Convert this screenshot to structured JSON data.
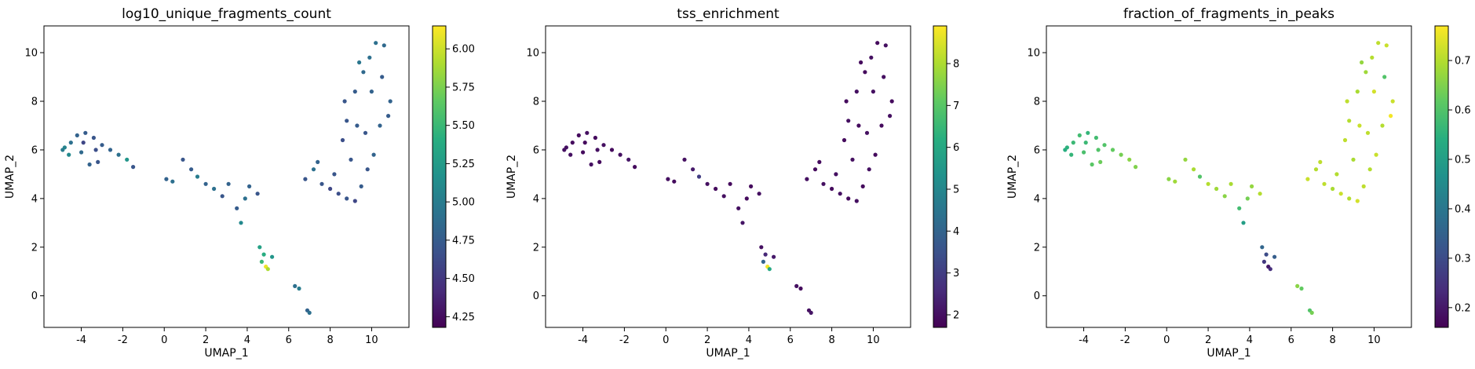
{
  "chart_data": [
    {
      "type": "scatter",
      "title": "log10_unique_fragments_count",
      "xlabel": "UMAP_1",
      "ylabel": "UMAP_2",
      "xlim": [
        -5.8,
        11.8
      ],
      "ylim": [
        -1.3,
        11.1
      ],
      "xticks": [
        -4,
        -2,
        0,
        2,
        4,
        6,
        8,
        10
      ],
      "yticks": [
        0,
        2,
        4,
        6,
        8,
        10
      ],
      "colorbar": {
        "cmap": "viridis",
        "vmin": 4.18,
        "vmax": 6.15,
        "ticks": [
          4.25,
          4.5,
          4.75,
          5.0,
          5.25,
          5.5,
          5.75,
          6.0
        ],
        "tick_labels": [
          "4.25",
          "4.50",
          "4.75",
          "5.00",
          "5.25",
          "5.50",
          "5.75",
          "6.00"
        ]
      },
      "points": [
        {
          "x": -4.8,
          "y": 6.1,
          "c": 5.05
        },
        {
          "x": -4.5,
          "y": 6.3,
          "c": 4.9
        },
        {
          "x": -4.2,
          "y": 6.6,
          "c": 4.8
        },
        {
          "x": -3.8,
          "y": 6.7,
          "c": 4.75
        },
        {
          "x": -3.4,
          "y": 6.5,
          "c": 4.7
        },
        {
          "x": -3.0,
          "y": 6.2,
          "c": 4.75
        },
        {
          "x": -2.6,
          "y": 6.0,
          "c": 4.8
        },
        {
          "x": -2.2,
          "y": 5.8,
          "c": 4.9
        },
        {
          "x": -1.8,
          "y": 5.6,
          "c": 5.2
        },
        {
          "x": -1.5,
          "y": 5.3,
          "c": 4.7
        },
        {
          "x": -4.6,
          "y": 5.8,
          "c": 5.1
        },
        {
          "x": -4.0,
          "y": 5.9,
          "c": 4.85
        },
        {
          "x": -3.6,
          "y": 5.4,
          "c": 4.8
        },
        {
          "x": -3.2,
          "y": 5.5,
          "c": 4.7
        },
        {
          "x": -4.9,
          "y": 6.0,
          "c": 5.0
        },
        {
          "x": -3.9,
          "y": 6.3,
          "c": 4.6
        },
        {
          "x": -3.3,
          "y": 6.0,
          "c": 4.65
        },
        {
          "x": 0.1,
          "y": 4.8,
          "c": 4.8
        },
        {
          "x": 0.4,
          "y": 4.7,
          "c": 4.9
        },
        {
          "x": 0.9,
          "y": 5.6,
          "c": 4.7
        },
        {
          "x": 1.3,
          "y": 5.2,
          "c": 4.75
        },
        {
          "x": 1.6,
          "y": 4.9,
          "c": 5.0
        },
        {
          "x": 2.0,
          "y": 4.6,
          "c": 4.8
        },
        {
          "x": 2.4,
          "y": 4.4,
          "c": 4.9
        },
        {
          "x": 2.8,
          "y": 4.1,
          "c": 4.7
        },
        {
          "x": 3.1,
          "y": 4.6,
          "c": 4.8
        },
        {
          "x": 3.5,
          "y": 3.6,
          "c": 4.75
        },
        {
          "x": 3.7,
          "y": 3.0,
          "c": 5.1
        },
        {
          "x": 4.1,
          "y": 4.5,
          "c": 4.8
        },
        {
          "x": 4.5,
          "y": 4.2,
          "c": 4.7
        },
        {
          "x": 3.9,
          "y": 4.0,
          "c": 4.9
        },
        {
          "x": 4.6,
          "y": 2.0,
          "c": 5.3
        },
        {
          "x": 4.8,
          "y": 1.7,
          "c": 5.4
        },
        {
          "x": 4.7,
          "y": 1.4,
          "c": 5.5
        },
        {
          "x": 4.9,
          "y": 1.2,
          "c": 6.1
        },
        {
          "x": 5.0,
          "y": 1.1,
          "c": 5.9
        },
        {
          "x": 5.2,
          "y": 1.6,
          "c": 5.2
        },
        {
          "x": 6.3,
          "y": 0.4,
          "c": 4.9
        },
        {
          "x": 6.5,
          "y": 0.3,
          "c": 5.0
        },
        {
          "x": 6.9,
          "y": -0.6,
          "c": 4.8
        },
        {
          "x": 7.0,
          "y": -0.7,
          "c": 4.9
        },
        {
          "x": 6.8,
          "y": 4.8,
          "c": 4.7
        },
        {
          "x": 7.2,
          "y": 5.2,
          "c": 4.9
        },
        {
          "x": 7.6,
          "y": 4.6,
          "c": 4.7
        },
        {
          "x": 8.0,
          "y": 4.4,
          "c": 4.6
        },
        {
          "x": 8.4,
          "y": 4.2,
          "c": 4.65
        },
        {
          "x": 8.8,
          "y": 4.0,
          "c": 4.7
        },
        {
          "x": 9.2,
          "y": 3.9,
          "c": 4.6
        },
        {
          "x": 9.5,
          "y": 4.5,
          "c": 4.75
        },
        {
          "x": 9.8,
          "y": 5.2,
          "c": 4.7
        },
        {
          "x": 10.1,
          "y": 5.8,
          "c": 4.8
        },
        {
          "x": 9.0,
          "y": 5.6,
          "c": 4.7
        },
        {
          "x": 8.6,
          "y": 6.4,
          "c": 4.65
        },
        {
          "x": 8.8,
          "y": 7.2,
          "c": 4.7
        },
        {
          "x": 9.3,
          "y": 7.0,
          "c": 4.75
        },
        {
          "x": 9.7,
          "y": 6.7,
          "c": 4.7
        },
        {
          "x": 10.4,
          "y": 7.0,
          "c": 4.8
        },
        {
          "x": 10.8,
          "y": 7.4,
          "c": 4.75
        },
        {
          "x": 10.9,
          "y": 8.0,
          "c": 4.8
        },
        {
          "x": 9.2,
          "y": 8.4,
          "c": 4.75
        },
        {
          "x": 9.6,
          "y": 9.2,
          "c": 4.85
        },
        {
          "x": 9.9,
          "y": 9.8,
          "c": 4.9
        },
        {
          "x": 10.2,
          "y": 10.4,
          "c": 4.9
        },
        {
          "x": 10.6,
          "y": 10.3,
          "c": 4.85
        },
        {
          "x": 9.4,
          "y": 9.6,
          "c": 4.95
        },
        {
          "x": 10.5,
          "y": 9.0,
          "c": 4.75
        },
        {
          "x": 8.7,
          "y": 8.0,
          "c": 4.7
        },
        {
          "x": 10.0,
          "y": 8.4,
          "c": 4.8
        },
        {
          "x": 7.4,
          "y": 5.5,
          "c": 4.8
        },
        {
          "x": 8.2,
          "y": 5.0,
          "c": 4.7
        }
      ]
    },
    {
      "type": "scatter",
      "title": "tss_enrichment",
      "xlabel": "UMAP_1",
      "ylabel": "UMAP_2",
      "xlim": [
        -5.8,
        11.8
      ],
      "ylim": [
        -1.3,
        11.1
      ],
      "xticks": [
        -4,
        -2,
        0,
        2,
        4,
        6,
        8,
        10
      ],
      "yticks": [
        0,
        2,
        4,
        6,
        8,
        10
      ],
      "colorbar": {
        "cmap": "viridis",
        "vmin": 1.7,
        "vmax": 8.9,
        "ticks": [
          2,
          3,
          4,
          5,
          6,
          7,
          8
        ],
        "tick_labels": [
          "2",
          "3",
          "4",
          "5",
          "6",
          "7",
          "8"
        ]
      },
      "points": [
        {
          "x": -4.8,
          "y": 6.1,
          "c": 2.0
        },
        {
          "x": -4.5,
          "y": 6.3,
          "c": 1.9
        },
        {
          "x": -4.2,
          "y": 6.6,
          "c": 1.9
        },
        {
          "x": -3.8,
          "y": 6.7,
          "c": 2.0
        },
        {
          "x": -3.4,
          "y": 6.5,
          "c": 1.9
        },
        {
          "x": -3.0,
          "y": 6.2,
          "c": 2.0
        },
        {
          "x": -2.6,
          "y": 6.0,
          "c": 1.9
        },
        {
          "x": -2.2,
          "y": 5.8,
          "c": 2.0
        },
        {
          "x": -1.8,
          "y": 5.6,
          "c": 2.1
        },
        {
          "x": -1.5,
          "y": 5.3,
          "c": 1.9
        },
        {
          "x": -4.6,
          "y": 5.8,
          "c": 2.0
        },
        {
          "x": -4.0,
          "y": 5.9,
          "c": 1.9
        },
        {
          "x": -3.6,
          "y": 5.4,
          "c": 2.0
        },
        {
          "x": -3.2,
          "y": 5.5,
          "c": 1.9
        },
        {
          "x": -4.9,
          "y": 6.0,
          "c": 2.0
        },
        {
          "x": -3.9,
          "y": 6.3,
          "c": 1.9
        },
        {
          "x": -3.3,
          "y": 6.0,
          "c": 2.0
        },
        {
          "x": 0.1,
          "y": 4.8,
          "c": 2.0
        },
        {
          "x": 0.4,
          "y": 4.7,
          "c": 1.9
        },
        {
          "x": 0.9,
          "y": 5.6,
          "c": 2.0
        },
        {
          "x": 1.3,
          "y": 5.2,
          "c": 2.2
        },
        {
          "x": 1.6,
          "y": 4.9,
          "c": 3.0
        },
        {
          "x": 2.0,
          "y": 4.6,
          "c": 2.0
        },
        {
          "x": 2.4,
          "y": 4.4,
          "c": 1.9
        },
        {
          "x": 2.8,
          "y": 4.1,
          "c": 2.0
        },
        {
          "x": 3.1,
          "y": 4.6,
          "c": 1.9
        },
        {
          "x": 3.5,
          "y": 3.6,
          "c": 2.0
        },
        {
          "x": 3.7,
          "y": 3.0,
          "c": 2.1
        },
        {
          "x": 4.1,
          "y": 4.5,
          "c": 1.9
        },
        {
          "x": 4.5,
          "y": 4.2,
          "c": 2.0
        },
        {
          "x": 3.9,
          "y": 4.0,
          "c": 1.9
        },
        {
          "x": 4.6,
          "y": 2.0,
          "c": 2.0
        },
        {
          "x": 4.8,
          "y": 1.7,
          "c": 2.5
        },
        {
          "x": 4.7,
          "y": 1.4,
          "c": 4.0
        },
        {
          "x": 4.9,
          "y": 1.2,
          "c": 8.8
        },
        {
          "x": 5.0,
          "y": 1.1,
          "c": 6.0
        },
        {
          "x": 5.2,
          "y": 1.6,
          "c": 2.2
        },
        {
          "x": 6.3,
          "y": 0.4,
          "c": 2.0
        },
        {
          "x": 6.5,
          "y": 0.3,
          "c": 1.9
        },
        {
          "x": 6.9,
          "y": -0.6,
          "c": 2.0
        },
        {
          "x": 7.0,
          "y": -0.7,
          "c": 2.1
        },
        {
          "x": 6.8,
          "y": 4.8,
          "c": 2.0
        },
        {
          "x": 7.2,
          "y": 5.2,
          "c": 1.9
        },
        {
          "x": 7.6,
          "y": 4.6,
          "c": 2.0
        },
        {
          "x": 8.0,
          "y": 4.4,
          "c": 1.9
        },
        {
          "x": 8.4,
          "y": 4.2,
          "c": 2.0
        },
        {
          "x": 8.8,
          "y": 4.0,
          "c": 1.9
        },
        {
          "x": 9.2,
          "y": 3.9,
          "c": 2.0
        },
        {
          "x": 9.5,
          "y": 4.5,
          "c": 1.9
        },
        {
          "x": 9.8,
          "y": 5.2,
          "c": 2.0
        },
        {
          "x": 10.1,
          "y": 5.8,
          "c": 1.9
        },
        {
          "x": 9.0,
          "y": 5.6,
          "c": 2.0
        },
        {
          "x": 8.6,
          "y": 6.4,
          "c": 1.9
        },
        {
          "x": 8.8,
          "y": 7.2,
          "c": 2.0
        },
        {
          "x": 9.3,
          "y": 7.0,
          "c": 1.9
        },
        {
          "x": 9.7,
          "y": 6.7,
          "c": 2.0
        },
        {
          "x": 10.4,
          "y": 7.0,
          "c": 1.9
        },
        {
          "x": 10.8,
          "y": 7.4,
          "c": 2.0
        },
        {
          "x": 10.9,
          "y": 8.0,
          "c": 1.9
        },
        {
          "x": 9.2,
          "y": 8.4,
          "c": 2.0
        },
        {
          "x": 9.6,
          "y": 9.2,
          "c": 1.9
        },
        {
          "x": 9.9,
          "y": 9.8,
          "c": 2.0
        },
        {
          "x": 10.2,
          "y": 10.4,
          "c": 1.9
        },
        {
          "x": 10.6,
          "y": 10.3,
          "c": 2.0
        },
        {
          "x": 9.4,
          "y": 9.6,
          "c": 1.9
        },
        {
          "x": 10.5,
          "y": 9.0,
          "c": 2.0
        },
        {
          "x": 8.7,
          "y": 8.0,
          "c": 1.9
        },
        {
          "x": 10.0,
          "y": 8.4,
          "c": 2.0
        },
        {
          "x": 7.4,
          "y": 5.5,
          "c": 1.9
        },
        {
          "x": 8.2,
          "y": 5.0,
          "c": 2.0
        }
      ]
    },
    {
      "type": "scatter",
      "title": "fraction_of_fragments_in_peaks",
      "xlabel": "UMAP_1",
      "ylabel": "UMAP_2",
      "xlim": [
        -5.8,
        11.8
      ],
      "ylim": [
        -1.3,
        11.1
      ],
      "xticks": [
        -4,
        -2,
        0,
        2,
        4,
        6,
        8,
        10
      ],
      "yticks": [
        0,
        2,
        4,
        6,
        8,
        10
      ],
      "colorbar": {
        "cmap": "viridis",
        "vmin": 0.16,
        "vmax": 0.77,
        "ticks": [
          0.2,
          0.3,
          0.4,
          0.5,
          0.6,
          0.7
        ],
        "tick_labels": [
          "0.2",
          "0.3",
          "0.4",
          "0.5",
          "0.6",
          "0.7"
        ]
      },
      "points": [
        {
          "x": -4.8,
          "y": 6.1,
          "c": 0.55
        },
        {
          "x": -4.5,
          "y": 6.3,
          "c": 0.57
        },
        {
          "x": -4.2,
          "y": 6.6,
          "c": 0.58
        },
        {
          "x": -3.8,
          "y": 6.7,
          "c": 0.56
        },
        {
          "x": -3.4,
          "y": 6.5,
          "c": 0.58
        },
        {
          "x": -3.0,
          "y": 6.2,
          "c": 0.6
        },
        {
          "x": -2.6,
          "y": 6.0,
          "c": 0.62
        },
        {
          "x": -2.2,
          "y": 5.8,
          "c": 0.64
        },
        {
          "x": -1.8,
          "y": 5.6,
          "c": 0.66
        },
        {
          "x": -1.5,
          "y": 5.3,
          "c": 0.65
        },
        {
          "x": -4.6,
          "y": 5.8,
          "c": 0.56
        },
        {
          "x": -4.0,
          "y": 5.9,
          "c": 0.59
        },
        {
          "x": -3.6,
          "y": 5.4,
          "c": 0.61
        },
        {
          "x": -3.2,
          "y": 5.5,
          "c": 0.63
        },
        {
          "x": -4.9,
          "y": 6.0,
          "c": 0.54
        },
        {
          "x": -3.9,
          "y": 6.3,
          "c": 0.57
        },
        {
          "x": -3.3,
          "y": 6.0,
          "c": 0.6
        },
        {
          "x": 0.1,
          "y": 4.8,
          "c": 0.66
        },
        {
          "x": 0.4,
          "y": 4.7,
          "c": 0.68
        },
        {
          "x": 0.9,
          "y": 5.6,
          "c": 0.67
        },
        {
          "x": 1.3,
          "y": 5.2,
          "c": 0.69
        },
        {
          "x": 1.6,
          "y": 4.9,
          "c": 0.6
        },
        {
          "x": 2.0,
          "y": 4.6,
          "c": 0.7
        },
        {
          "x": 2.4,
          "y": 4.4,
          "c": 0.68
        },
        {
          "x": 2.8,
          "y": 4.1,
          "c": 0.66
        },
        {
          "x": 3.1,
          "y": 4.6,
          "c": 0.69
        },
        {
          "x": 3.5,
          "y": 3.6,
          "c": 0.58
        },
        {
          "x": 3.7,
          "y": 3.0,
          "c": 0.5
        },
        {
          "x": 4.1,
          "y": 4.5,
          "c": 0.67
        },
        {
          "x": 4.5,
          "y": 4.2,
          "c": 0.7
        },
        {
          "x": 3.9,
          "y": 4.0,
          "c": 0.64
        },
        {
          "x": 4.6,
          "y": 2.0,
          "c": 0.36
        },
        {
          "x": 4.8,
          "y": 1.7,
          "c": 0.3
        },
        {
          "x": 4.7,
          "y": 1.4,
          "c": 0.26
        },
        {
          "x": 4.9,
          "y": 1.2,
          "c": 0.2
        },
        {
          "x": 5.0,
          "y": 1.1,
          "c": 0.24
        },
        {
          "x": 5.2,
          "y": 1.6,
          "c": 0.34
        },
        {
          "x": 6.3,
          "y": 0.4,
          "c": 0.66
        },
        {
          "x": 6.5,
          "y": 0.3,
          "c": 0.62
        },
        {
          "x": 6.9,
          "y": -0.6,
          "c": 0.6
        },
        {
          "x": 7.0,
          "y": -0.7,
          "c": 0.64
        },
        {
          "x": 6.8,
          "y": 4.8,
          "c": 0.72
        },
        {
          "x": 7.2,
          "y": 5.2,
          "c": 0.7
        },
        {
          "x": 7.6,
          "y": 4.6,
          "c": 0.71
        },
        {
          "x": 8.0,
          "y": 4.4,
          "c": 0.69
        },
        {
          "x": 8.4,
          "y": 4.2,
          "c": 0.72
        },
        {
          "x": 8.8,
          "y": 4.0,
          "c": 0.7
        },
        {
          "x": 9.2,
          "y": 3.9,
          "c": 0.73
        },
        {
          "x": 9.5,
          "y": 4.5,
          "c": 0.71
        },
        {
          "x": 9.8,
          "y": 5.2,
          "c": 0.7
        },
        {
          "x": 10.1,
          "y": 5.8,
          "c": 0.72
        },
        {
          "x": 9.0,
          "y": 5.6,
          "c": 0.69
        },
        {
          "x": 8.6,
          "y": 6.4,
          "c": 0.71
        },
        {
          "x": 8.8,
          "y": 7.2,
          "c": 0.7
        },
        {
          "x": 9.3,
          "y": 7.0,
          "c": 0.72
        },
        {
          "x": 9.7,
          "y": 6.7,
          "c": 0.71
        },
        {
          "x": 10.4,
          "y": 7.0,
          "c": 0.7
        },
        {
          "x": 10.8,
          "y": 7.4,
          "c": 0.76
        },
        {
          "x": 10.9,
          "y": 8.0,
          "c": 0.72
        },
        {
          "x": 9.2,
          "y": 8.4,
          "c": 0.69
        },
        {
          "x": 9.6,
          "y": 9.2,
          "c": 0.68
        },
        {
          "x": 9.9,
          "y": 9.8,
          "c": 0.7
        },
        {
          "x": 10.2,
          "y": 10.4,
          "c": 0.71
        },
        {
          "x": 10.6,
          "y": 10.3,
          "c": 0.72
        },
        {
          "x": 9.4,
          "y": 9.6,
          "c": 0.67
        },
        {
          "x": 10.5,
          "y": 9.0,
          "c": 0.6
        },
        {
          "x": 8.7,
          "y": 8.0,
          "c": 0.71
        },
        {
          "x": 10.0,
          "y": 8.4,
          "c": 0.73
        },
        {
          "x": 7.4,
          "y": 5.5,
          "c": 0.71
        },
        {
          "x": 8.2,
          "y": 5.0,
          "c": 0.7
        }
      ]
    }
  ]
}
